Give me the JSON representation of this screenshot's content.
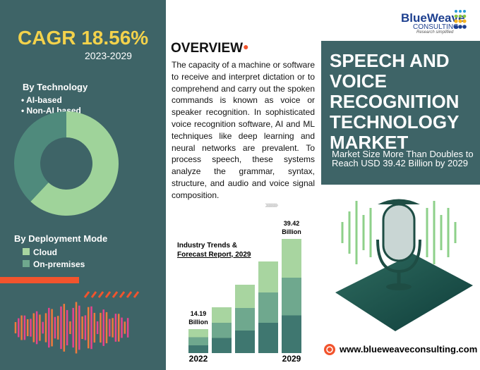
{
  "logo": {
    "name": "BlueWeave",
    "sub": "CONSULTING",
    "tagline": "Research simplified"
  },
  "left": {
    "cagr": "CAGR 18.56%",
    "period": "2023-2029",
    "technology_title": "By Technology",
    "deployment_title": "By Deployment Mode",
    "deployment_items": [
      "Cloud",
      "On-premises"
    ]
  },
  "overview": {
    "title": "OVERVIEW",
    "text": "The capacity of a machine or software to receive and interpret dictation or to comprehend and carry out the spoken commands is known as voice or speaker recognition. In sophisticated voice recognition software, AI and ML techniques like deep learning and neural networks are prevalent. To process speech, these systems analyze the grammar, syntax, structure, and audio and voice signal composition."
  },
  "market_box": {
    "title": "SPEECH AND VOICE RECOGNITION TECHNOLOGY MARKET",
    "subtitle": "Market Size More Than Doubles to Reach USD 39.42 Billion by 2029"
  },
  "website": "www.blueweaveconsulting.com",
  "chart_data": [
    {
      "type": "donut",
      "categories": [
        "AI-based",
        "Non-AI based"
      ],
      "values": [
        62,
        38
      ],
      "colors": [
        "#9fd39a",
        "#4f8a7c"
      ]
    },
    {
      "type": "bar",
      "title": "Industry Trends &",
      "subtitle": "Forecast Report, 2029",
      "categories": [
        "2022",
        null,
        null,
        null,
        "2029"
      ],
      "values": [
        14.19,
        20.3,
        26.6,
        33.1,
        39.42
      ],
      "value_labels": [
        "14.19 Billion",
        null,
        null,
        null,
        "39.42 Billion"
      ],
      "ylim": [
        7.5,
        40
      ],
      "colors": [
        "#3f7770",
        "#6fa88e",
        "#a8d5a0"
      ]
    }
  ]
}
